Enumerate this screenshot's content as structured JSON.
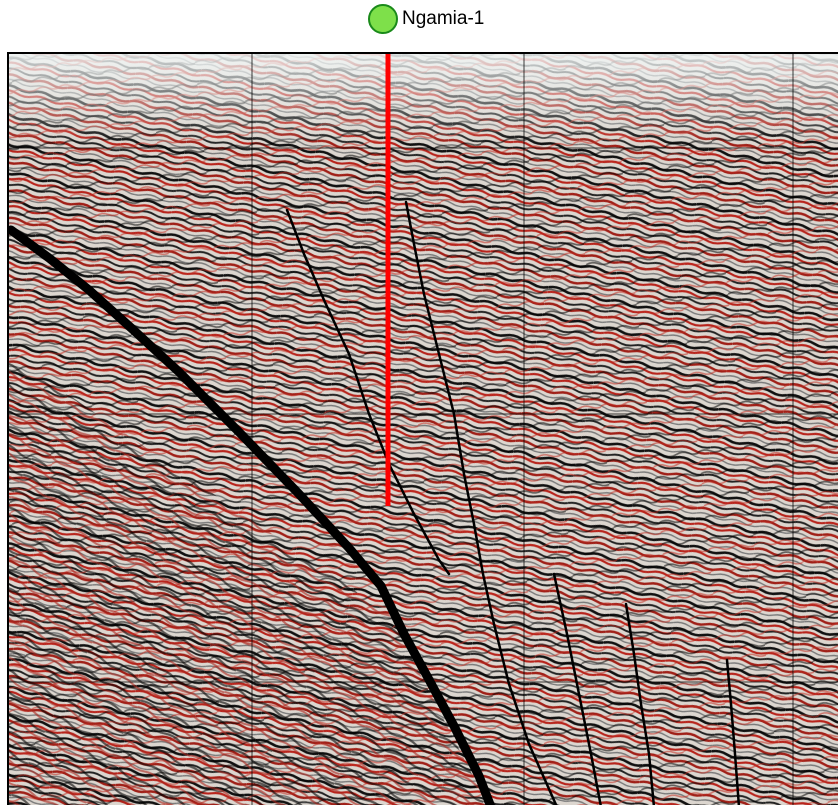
{
  "well": {
    "name": "Ngamia-1",
    "marker_color": "#7ee04a",
    "track_color": "#ff0000"
  },
  "section": {
    "type": "seismic-cross-section",
    "background_wavelet_colors": [
      "#000000",
      "#b8241c",
      "#ffffff",
      "#8c8c8c"
    ],
    "horizon_colors": {
      "green": "#7ddc1f",
      "cyan": "#2fd0e8",
      "blue": "#2c62e0",
      "purple": "#8a2be2",
      "yellow": "#ffe000",
      "magenta": "#e040d0"
    },
    "fault_color": "#000000",
    "grid_lines": true
  }
}
